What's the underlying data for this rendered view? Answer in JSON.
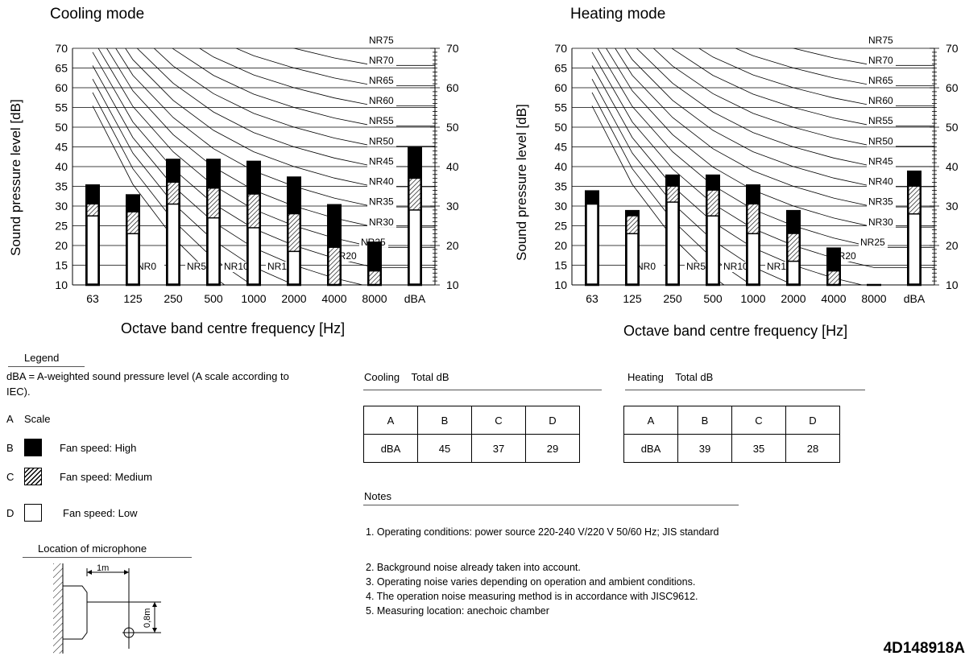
{
  "chart_data": [
    {
      "type": "bar",
      "title": "Cooling mode",
      "xlabel": "Octave band centre frequency [Hz]",
      "ylabel": "Sound pressure level [dB]",
      "ylim": [
        10,
        70
      ],
      "yticks": [
        10,
        15,
        20,
        25,
        30,
        35,
        40,
        45,
        50,
        55,
        60,
        65,
        70
      ],
      "right_yticks": [
        10,
        20,
        30,
        40,
        50,
        60,
        70
      ],
      "categories": [
        "63",
        "125",
        "250",
        "500",
        "1000",
        "2000",
        "4000",
        "8000",
        "dBA"
      ],
      "series": [
        {
          "name": "Fan speed: High",
          "values": [
            35.5,
            33,
            42,
            42,
            41.5,
            37.5,
            30.5,
            21,
            45
          ]
        },
        {
          "name": "Fan speed: Medium",
          "values": [
            30.5,
            28.5,
            36,
            34.5,
            33,
            28,
            19.5,
            13.5,
            37
          ]
        },
        {
          "name": "Fan speed: Low",
          "values": [
            27.5,
            23,
            30.5,
            27,
            24.5,
            18.5,
            10,
            10,
            29
          ]
        }
      ],
      "nr_curves": [
        "NR0",
        "NR5",
        "NR10",
        "NR15",
        "NR20",
        "NR25",
        "NR30",
        "NR35",
        "NR40",
        "NR45",
        "NR50",
        "NR55",
        "NR60",
        "NR65",
        "NR70",
        "NR75"
      ],
      "grid": true
    },
    {
      "type": "bar",
      "title": "Heating mode",
      "xlabel": "Octave band centre frequency [Hz]",
      "ylabel": "Sound pressure level [dB]",
      "ylim": [
        10,
        70
      ],
      "yticks": [
        10,
        15,
        20,
        25,
        30,
        35,
        40,
        45,
        50,
        55,
        60,
        65,
        70
      ],
      "right_yticks": [
        10,
        20,
        30,
        40,
        50,
        60,
        70
      ],
      "categories": [
        "63",
        "125",
        "250",
        "500",
        "1000",
        "2000",
        "4000",
        "8000",
        "dBA"
      ],
      "series": [
        {
          "name": "Fan speed: High",
          "values": [
            34,
            29,
            38,
            38,
            35.5,
            29,
            19.5,
            10,
            39
          ]
        },
        {
          "name": "Fan speed: Medium",
          "values": [
            30.5,
            27.5,
            35,
            34,
            30.5,
            23,
            13.5,
            10,
            35
          ]
        },
        {
          "name": "Fan speed: Low",
          "values": [
            30.5,
            23,
            31,
            27.5,
            23,
            16,
            10,
            10,
            28
          ]
        }
      ],
      "nr_curves": [
        "NR0",
        "NR5",
        "NR10",
        "NR15",
        "NR20",
        "NR25",
        "NR30",
        "NR35",
        "NR40",
        "NR45",
        "NR50",
        "NR55",
        "NR60",
        "NR65",
        "NR70",
        "NR75"
      ],
      "grid": true
    }
  ],
  "legend": {
    "title": "Legend",
    "description": "dBA = A-weighted sound pressure level (A scale according to IEC).",
    "scale_letter": "A",
    "scale_label": "Scale",
    "items": [
      {
        "letter": "B",
        "label": "Fan speed: High"
      },
      {
        "letter": "C",
        "label": "Fan speed: Medium"
      },
      {
        "letter": "D",
        "label": "Fan speed: Low"
      }
    ]
  },
  "microphone": {
    "title": "Location of microphone",
    "horizontal": "1m",
    "vertical": "0,8m"
  },
  "tables": [
    {
      "mode": "Cooling",
      "heading": "Total dB",
      "headers": [
        "A",
        "B",
        "C",
        "D"
      ],
      "row": [
        "dBA",
        "45",
        "37",
        "29"
      ]
    },
    {
      "mode": "Heating",
      "heading": "Total dB",
      "headers": [
        "A",
        "B",
        "C",
        "D"
      ],
      "row": [
        "dBA",
        "39",
        "35",
        "28"
      ]
    }
  ],
  "notes": {
    "title": "Notes",
    "items": [
      "1. Operating conditions: power source 220-240 V/220 V 50/60 Hz; JIS standard",
      "2. Background noise already taken into account.",
      "3. Operating noise varies depending on operation and ambient conditions.",
      "4. The operation noise measuring method is in accordance with JISC9612.",
      "5. Measuring location: anechoic chamber"
    ]
  },
  "document_id": "4D148918A",
  "colors": {
    "high": "#000000",
    "low": "#ffffff",
    "grid": "#000000"
  }
}
